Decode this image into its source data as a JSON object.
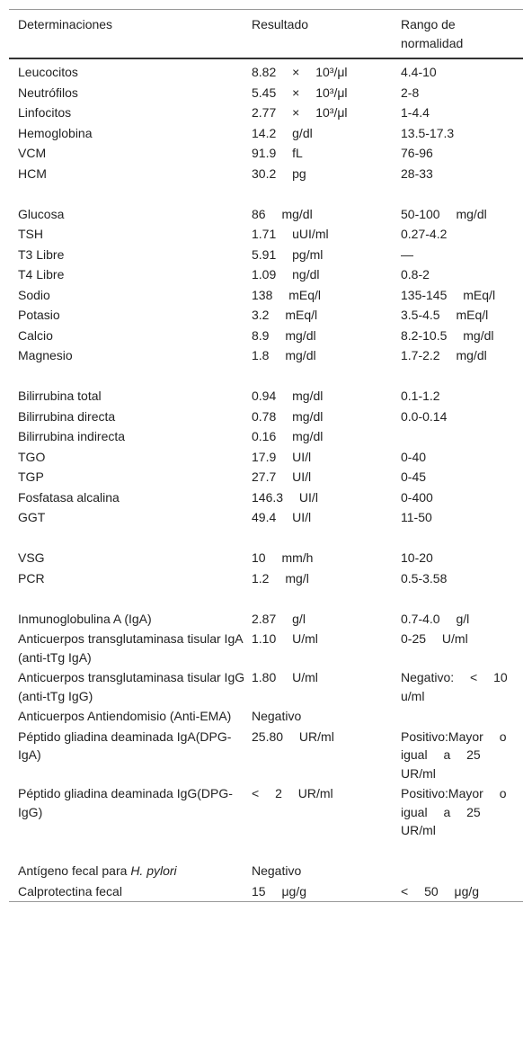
{
  "table": {
    "header": [
      "Determinaciones",
      "Resultado",
      "Rango de normalidad"
    ],
    "groups": [
      [
        [
          "Leucocitos",
          "8.82 × 10³/μl",
          "4.4-10"
        ],
        [
          "Neutrófilos",
          "5.45 × 10³/μl",
          "2-8"
        ],
        [
          "Linfocitos",
          "2.77 × 10³/μl",
          "1-4.4"
        ],
        [
          "Hemoglobina",
          "14.2 g/dl",
          "13.5-17.3"
        ],
        [
          "VCM",
          "91.9 fL",
          "76-96"
        ],
        [
          "HCM",
          "30.2 pg",
          "28-33"
        ]
      ],
      [
        [
          "Glucosa",
          "86 mg/dl",
          "50-100 mg/dl"
        ],
        [
          "TSH",
          "1.71 uUI/ml",
          "0.27-4.2"
        ],
        [
          "T3 Libre",
          "5.91 pg/ml",
          "—"
        ],
        [
          "T4 Libre",
          "1.09 ng/dl",
          "0.8-2"
        ],
        [
          "Sodio",
          "138 mEq/l",
          "135-145 mEq/l"
        ],
        [
          "Potasio",
          "3.2 mEq/l",
          "3.5-4.5 mEq/l"
        ],
        [
          "Calcio",
          "8.9 mg/dl",
          "8.2-10.5 mg/dl"
        ],
        [
          "Magnesio",
          "1.8 mg/dl",
          "1.7-2.2 mg/dl"
        ]
      ],
      [
        [
          "Bilirrubina total",
          "0.94 mg/dl",
          "0.1-1.2"
        ],
        [
          "Bilirrubina directa",
          "0.78 mg/dl",
          "0.0-0.14"
        ],
        [
          "Bilirrubina indirecta",
          "0.16 mg/dl",
          null
        ],
        [
          "TGO",
          "17.9 UI/l",
          "0-40"
        ],
        [
          "TGP",
          "27.7 UI/l",
          "0-45"
        ],
        [
          "Fosfatasa alcalina",
          "146.3 UI/l",
          "0-400"
        ],
        [
          "GGT",
          "49.4 UI/l",
          "11-50"
        ]
      ],
      [
        [
          "VSG",
          "10 mm/h",
          "10-20"
        ],
        [
          "PCR",
          "1.2 mg/l",
          "0.5-3.58"
        ]
      ],
      [
        [
          "Inmunoglobulina A (IgA)",
          "2.87 g/l",
          "0.7-4.0 g/l"
        ],
        [
          "Anticuerpos transglutaminasa tisular IgA (anti-tTg IgA)",
          "1.10 U/ml",
          "0-25 U/ml"
        ],
        [
          "Anticuerpos transglutaminasa tisular IgG (anti-tTg IgG)",
          "1.80 U/ml",
          "Negativo: < 10 u/ml"
        ],
        [
          "Anticuerpos Antiendomisio (Anti-EMA)",
          "Negativo",
          null
        ],
        [
          "Péptido gliadina deaminada IgA(DPG-IgA)",
          "25.80 UR/ml",
          "Positivo:Mayor o igual a 25 UR/ml"
        ],
        [
          "Péptido gliadina deaminada IgG(DPG-IgG)",
          "< 2 UR/ml",
          "Positivo:Mayor o igual a 25 UR/ml"
        ]
      ],
      [
        [
          {
            "parts": [
              "Antígeno fecal para ",
              "H. pylori"
            ],
            "italic_part": 1
          },
          "Negativo",
          null
        ],
        [
          "Calprotectina fecal",
          "15 μg/g",
          "< 50 μg/g"
        ]
      ]
    ]
  }
}
